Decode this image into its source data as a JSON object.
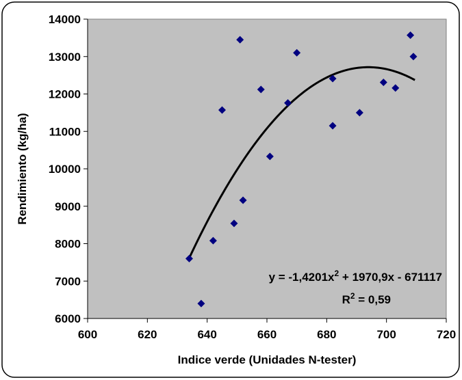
{
  "chart_data": {
    "type": "scatter",
    "xlabel": "Indice verde (Unidades N-tester)",
    "ylabel": "Rendimiento (kg/ha)",
    "xlim": [
      600,
      720
    ],
    "ylim": [
      6000,
      14000
    ],
    "xticks": [
      "600",
      "620",
      "640",
      "660",
      "680",
      "700",
      "720"
    ],
    "yticks": [
      "6000",
      "7000",
      "8000",
      "9000",
      "10000",
      "11000",
      "12000",
      "13000",
      "14000"
    ],
    "grid": false,
    "plot_background": "#c0c0c0",
    "marker_color": "#000080",
    "series": [
      {
        "points": [
          {
            "x": 634,
            "y": 7600
          },
          {
            "x": 638,
            "y": 6400
          },
          {
            "x": 642,
            "y": 8080
          },
          {
            "x": 645,
            "y": 11570
          },
          {
            "x": 649,
            "y": 8540
          },
          {
            "x": 651,
            "y": 13450
          },
          {
            "x": 652,
            "y": 9160
          },
          {
            "x": 658,
            "y": 12120
          },
          {
            "x": 661,
            "y": 10330
          },
          {
            "x": 667,
            "y": 11760
          },
          {
            "x": 670,
            "y": 13100
          },
          {
            "x": 682,
            "y": 12410
          },
          {
            "x": 682,
            "y": 11150
          },
          {
            "x": 691,
            "y": 11500
          },
          {
            "x": 699,
            "y": 12310
          },
          {
            "x": 703,
            "y": 12160
          },
          {
            "x": 708,
            "y": 13570
          },
          {
            "x": 709,
            "y": 13000
          }
        ]
      }
    ],
    "trendline": {
      "type": "polynomial",
      "a": -1.4201,
      "b": 1970.9,
      "c": -671117,
      "x_range": [
        634,
        709.5
      ],
      "color": "#000000"
    },
    "annotations": {
      "equation_prefix": "y = -1,4201x",
      "equation_sup": "2",
      "equation_suffix": " + 1970,9x - 671117",
      "r2_prefix": "R",
      "r2_sup": "2",
      "r2_suffix": " = 0,59"
    }
  }
}
